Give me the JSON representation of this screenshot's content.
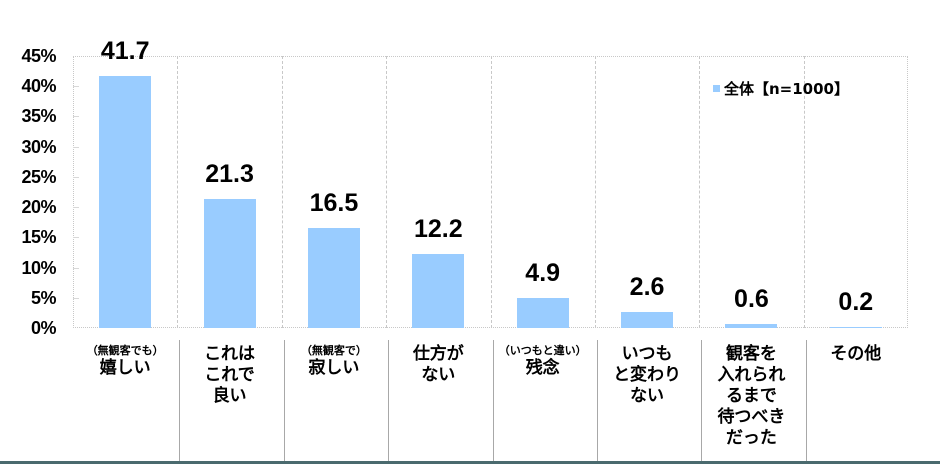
{
  "chart_data": {
    "type": "bar",
    "title": "",
    "xlabel": "",
    "ylabel": "",
    "ylim": [
      0,
      45
    ],
    "yticks": [
      "0%",
      "5%",
      "10%",
      "15%",
      "20%",
      "25%",
      "30%",
      "35%",
      "40%",
      "45%"
    ],
    "grid": "vertical dashed category separators",
    "legend_position": "top-right inside plot",
    "categories": [
      {
        "sub": "（無観客でも）",
        "main": "嬉しい"
      },
      {
        "sub": "",
        "main": "これは\nこれで\n良い"
      },
      {
        "sub": "（無観客で）",
        "main": "寂しい"
      },
      {
        "sub": "",
        "main": "仕方が\nない"
      },
      {
        "sub": "（いつもと違い）",
        "main": "残念"
      },
      {
        "sub": "",
        "main": "いつも\nと変わり\nない"
      },
      {
        "sub": "",
        "main": "観客を\n入れられ\nるまで\n待つべき\nだった"
      },
      {
        "sub": "",
        "main": "その他"
      }
    ],
    "series": [
      {
        "name": "全体【n=1000】",
        "color": "#99CCFF",
        "values": [
          41.7,
          21.3,
          16.5,
          12.2,
          4.9,
          2.6,
          0.6,
          0.2
        ]
      }
    ],
    "value_labels": [
      "41.7",
      "21.3",
      "16.5",
      "12.2",
      "4.9",
      "2.6",
      "0.6",
      "0.2"
    ]
  },
  "legend": {
    "label": "全体【n=1000】"
  }
}
